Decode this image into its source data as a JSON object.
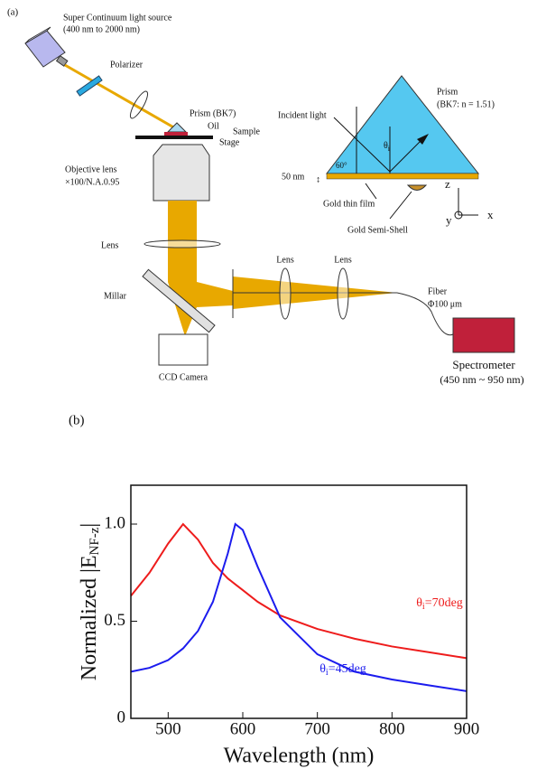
{
  "panel_a": {
    "label": "(a)",
    "source": "Super Continuum light source",
    "source_range": "(400 nm to 2000 nm)",
    "polarizer": "Polarizer",
    "prism_small": "Prism (BK7)",
    "oil": "Oil",
    "sample": "Sample",
    "stage": "Stage",
    "objective": "Objective lens",
    "objective_spec": "×100/N.A.0.95",
    "lens": "Lens",
    "millar": "Millar",
    "ccd": "CCD Camera",
    "lens2": "Lens",
    "lens3": "Lens",
    "fiber": "Fiber",
    "fiber_spec": "Φ100 μm",
    "spectrometer": "Spectrometer",
    "spec_range": "(450 nm ~ 950 nm)",
    "inset": {
      "prism": "Prism",
      "prism_spec": "(BK7: n = 1.51)",
      "incident": "Incident light",
      "theta": "θ",
      "theta_sub": "i",
      "angle": "60°",
      "thickness": "50 nm",
      "film": "Gold thin film",
      "shell": "Gold Semi-Shell",
      "z": "z",
      "y": "y",
      "x": "x"
    }
  },
  "chart_data": {
    "type": "line",
    "panel_label": "(b)",
    "x_label": "Wavelength (nm)",
    "y_label": {
      "main": "Normalized |E",
      "sub": "NF-z",
      "end": "|"
    },
    "x": [
      450,
      475,
      500,
      520,
      540,
      560,
      580,
      590,
      600,
      620,
      650,
      700,
      750,
      800,
      850,
      900
    ],
    "series": [
      {
        "color": "#ee1c1c",
        "values": [
          0.63,
          0.75,
          0.9,
          1.0,
          0.92,
          0.8,
          0.72,
          0.69,
          0.66,
          0.6,
          0.53,
          0.46,
          0.41,
          0.37,
          0.34,
          0.31
        ]
      },
      {
        "color": "#1c1cee",
        "values": [
          0.24,
          0.26,
          0.3,
          0.36,
          0.45,
          0.6,
          0.85,
          1.0,
          0.97,
          0.78,
          0.52,
          0.33,
          0.24,
          0.2,
          0.17,
          0.14
        ]
      }
    ],
    "annotations": [
      {
        "theta": "θ",
        "sub": "i",
        "text": "=70deg"
      },
      {
        "theta": "θ",
        "sub": "i",
        "text": "=45deg"
      }
    ],
    "xlim": [
      450,
      900
    ],
    "ylim": [
      0,
      1.2
    ],
    "xticks": [
      500,
      600,
      700,
      800,
      900
    ],
    "yticks": [
      0,
      0.5,
      {
        "value": 1,
        "label": "1.0"
      }
    ]
  }
}
